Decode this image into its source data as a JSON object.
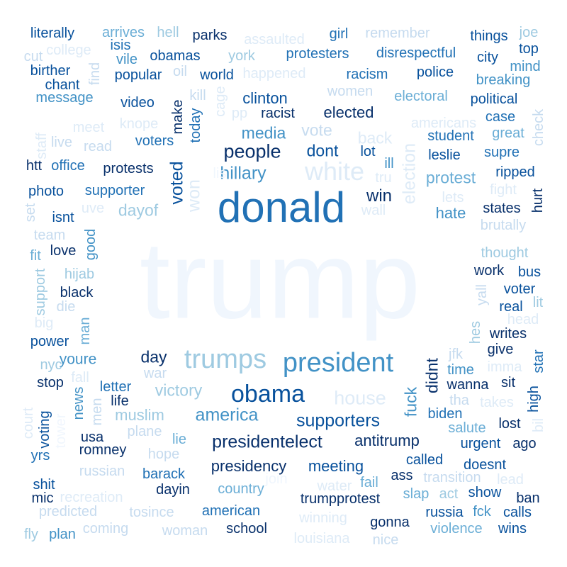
{
  "palette": {
    "c1": "#08306b",
    "c2": "#08519c",
    "c3": "#2171b5",
    "c4": "#4292c6",
    "c5": "#6baed6",
    "c6": "#9ecae1",
    "c7": "#c6dbef",
    "c8": "#deebf7",
    "c9": "#f0f6fd"
  },
  "words": [
    {
      "text": "trump",
      "color": "c9"
    },
    {
      "text": "donald",
      "color": "c3"
    },
    {
      "text": "president",
      "color": "c4"
    },
    {
      "text": "trumps",
      "color": "c6"
    },
    {
      "text": "obama",
      "color": "c2"
    },
    {
      "text": "white",
      "color": "c8"
    },
    {
      "text": "people",
      "color": "c1"
    },
    {
      "text": "house",
      "color": "c8"
    },
    {
      "text": "presidentelect",
      "color": "c1"
    },
    {
      "text": "supporters",
      "color": "c2"
    },
    {
      "text": "america",
      "color": "c4"
    },
    {
      "text": "presidency",
      "color": "c1"
    },
    {
      "text": "hillary",
      "color": "c4"
    },
    {
      "text": "election",
      "color": "c8"
    },
    {
      "text": "won",
      "color": "c8"
    },
    {
      "text": "voted",
      "color": "c2"
    },
    {
      "text": "win",
      "color": "c1"
    },
    {
      "text": "meeting",
      "color": "c2"
    },
    {
      "text": "antitrump",
      "color": "c1"
    },
    {
      "text": "victory",
      "color": "c6"
    },
    {
      "text": "fuck",
      "color": "c4"
    },
    {
      "text": "didnt",
      "color": "c1"
    },
    {
      "text": "dont",
      "color": "c2"
    },
    {
      "text": "day",
      "color": "c1"
    },
    {
      "text": "media",
      "color": "c4"
    },
    {
      "text": "protest",
      "color": "c5"
    },
    {
      "text": "vote",
      "color": "c7"
    },
    {
      "text": "back",
      "color": "c8"
    },
    {
      "text": "clinton",
      "color": "c2"
    },
    {
      "text": "elected",
      "color": "c1"
    },
    {
      "text": "dayof",
      "color": "c6"
    },
    {
      "text": "hate",
      "color": "c4"
    },
    {
      "text": "muslim",
      "color": "c6"
    },
    {
      "text": "country",
      "color": "c5"
    },
    {
      "text": "trumpprotest",
      "color": "c1"
    },
    {
      "text": "plane",
      "color": "c7"
    },
    {
      "text": "racist",
      "color": "c1"
    },
    {
      "text": "today",
      "color": "c3"
    },
    {
      "text": "make",
      "color": "c1"
    },
    {
      "text": "youre",
      "color": "c4"
    },
    {
      "text": "american",
      "color": "c3"
    },
    {
      "text": "barack",
      "color": "c3"
    },
    {
      "text": "school",
      "color": "c1"
    },
    {
      "text": "dayin",
      "color": "c1"
    },
    {
      "text": "called",
      "color": "c2"
    },
    {
      "text": "biden",
      "color": "c3"
    },
    {
      "text": "time",
      "color": "c4"
    },
    {
      "text": "wanna",
      "color": "c1"
    },
    {
      "text": "doesnt",
      "color": "c2"
    },
    {
      "text": "salute",
      "color": "c5"
    },
    {
      "text": "urgent",
      "color": "c2"
    },
    {
      "text": "lost",
      "color": "c1"
    },
    {
      "text": "water",
      "color": "c8"
    },
    {
      "text": "fail",
      "color": "c5"
    },
    {
      "text": "ass",
      "color": "c1"
    },
    {
      "text": "slap",
      "color": "c5"
    },
    {
      "text": "act",
      "color": "c6"
    },
    {
      "text": "show",
      "color": "c2"
    },
    {
      "text": "transition",
      "color": "c7"
    },
    {
      "text": "russia",
      "color": "c2"
    },
    {
      "text": "fck",
      "color": "c4"
    },
    {
      "text": "calls",
      "color": "c2"
    },
    {
      "text": "wins",
      "color": "c2"
    },
    {
      "text": "violence",
      "color": "c5"
    },
    {
      "text": "gonna",
      "color": "c1"
    },
    {
      "text": "nice",
      "color": "c7"
    },
    {
      "text": "winning",
      "color": "c8"
    },
    {
      "text": "louisiana",
      "color": "c8"
    },
    {
      "text": "woman",
      "color": "c7"
    },
    {
      "text": "coming",
      "color": "c7"
    },
    {
      "text": "tosince",
      "color": "c7"
    },
    {
      "text": "predicted",
      "color": "c7"
    },
    {
      "text": "recreation",
      "color": "c8"
    },
    {
      "text": "fly",
      "color": "c6"
    },
    {
      "text": "plan",
      "color": "c4"
    },
    {
      "text": "mic",
      "color": "c1"
    },
    {
      "text": "shit",
      "color": "c2"
    },
    {
      "text": "yrs",
      "color": "c3"
    },
    {
      "text": "romney",
      "color": "c1"
    },
    {
      "text": "usa",
      "color": "c1"
    },
    {
      "text": "hope",
      "color": "c7"
    },
    {
      "text": "lie",
      "color": "c5"
    },
    {
      "text": "russian",
      "color": "c7"
    },
    {
      "text": "voting",
      "color": "c2"
    },
    {
      "text": "court",
      "color": "c8"
    },
    {
      "text": "tower",
      "color": "c9"
    },
    {
      "text": "news",
      "color": "c4"
    },
    {
      "text": "men",
      "color": "c7"
    },
    {
      "text": "life",
      "color": "c1"
    },
    {
      "text": "letter",
      "color": "c3"
    },
    {
      "text": "stop",
      "color": "c1"
    },
    {
      "text": "nyc",
      "color": "c6"
    },
    {
      "text": "fall",
      "color": "c8"
    },
    {
      "text": "war",
      "color": "c7"
    },
    {
      "text": "power",
      "color": "c2"
    },
    {
      "text": "man",
      "color": "c5"
    },
    {
      "text": "big",
      "color": "c8"
    },
    {
      "text": "die",
      "color": "c7"
    },
    {
      "text": "black",
      "color": "c1"
    },
    {
      "text": "support",
      "color": "c6"
    },
    {
      "text": "hijab",
      "color": "c6"
    },
    {
      "text": "fit",
      "color": "c5"
    },
    {
      "text": "love",
      "color": "c1"
    },
    {
      "text": "good",
      "color": "c4"
    },
    {
      "text": "team",
      "color": "c7"
    },
    {
      "text": "isnt",
      "color": "c2"
    },
    {
      "text": "set",
      "color": "c7"
    },
    {
      "text": "uve",
      "color": "c8"
    },
    {
      "text": "photo",
      "color": "c2"
    },
    {
      "text": "supporter",
      "color": "c3"
    },
    {
      "text": "htt",
      "color": "c1"
    },
    {
      "text": "office",
      "color": "c3"
    },
    {
      "text": "protests",
      "color": "c1"
    },
    {
      "text": "staff",
      "color": "c8"
    },
    {
      "text": "live",
      "color": "c7"
    },
    {
      "text": "read",
      "color": "c7"
    },
    {
      "text": "voters",
      "color": "c3"
    },
    {
      "text": "meet",
      "color": "c8"
    },
    {
      "text": "knope",
      "color": "c8"
    },
    {
      "text": "video",
      "color": "c2"
    },
    {
      "text": "kill",
      "color": "c7"
    },
    {
      "text": "message",
      "color": "c4"
    },
    {
      "text": "chant",
      "color": "c2"
    },
    {
      "text": "birther",
      "color": "c2"
    },
    {
      "text": "find",
      "color": "c7"
    },
    {
      "text": "popular",
      "color": "c2"
    },
    {
      "text": "oil",
      "color": "c7"
    },
    {
      "text": "world",
      "color": "c2"
    },
    {
      "text": "cut",
      "color": "c7"
    },
    {
      "text": "college",
      "color": "c8"
    },
    {
      "text": "vile",
      "color": "c4"
    },
    {
      "text": "obamas",
      "color": "c2"
    },
    {
      "text": "isis",
      "color": "c3"
    },
    {
      "text": "literally",
      "color": "c2"
    },
    {
      "text": "arrives",
      "color": "c5"
    },
    {
      "text": "hell",
      "color": "c6"
    },
    {
      "text": "parks",
      "color": "c1"
    },
    {
      "text": "assaulted",
      "color": "c8"
    },
    {
      "text": "york",
      "color": "c6"
    },
    {
      "text": "happened",
      "color": "c8"
    },
    {
      "text": "girl",
      "color": "c3"
    },
    {
      "text": "remember",
      "color": "c7"
    },
    {
      "text": "protesters",
      "color": "c3"
    },
    {
      "text": "disrespectful",
      "color": "c3"
    },
    {
      "text": "racism",
      "color": "c3"
    },
    {
      "text": "police",
      "color": "c2"
    },
    {
      "text": "women",
      "color": "c7"
    },
    {
      "text": "electoral",
      "color": "c5"
    },
    {
      "text": "things",
      "color": "c2"
    },
    {
      "text": "joe",
      "color": "c6"
    },
    {
      "text": "top",
      "color": "c2"
    },
    {
      "text": "city",
      "color": "c2"
    },
    {
      "text": "mind",
      "color": "c4"
    },
    {
      "text": "breaking",
      "color": "c4"
    },
    {
      "text": "political",
      "color": "c2"
    },
    {
      "text": "case",
      "color": "c3"
    },
    {
      "text": "check",
      "color": "c7"
    },
    {
      "text": "americans",
      "color": "c8"
    },
    {
      "text": "student",
      "color": "c3"
    },
    {
      "text": "great",
      "color": "c5"
    },
    {
      "text": "leslie",
      "color": "c2"
    },
    {
      "text": "supre",
      "color": "c3"
    },
    {
      "text": "ripped",
      "color": "c2"
    },
    {
      "text": "fight",
      "color": "c8"
    },
    {
      "text": "hurt",
      "color": "c1"
    },
    {
      "text": "lets",
      "color": "c8"
    },
    {
      "text": "states",
      "color": "c1"
    },
    {
      "text": "brutally",
      "color": "c7"
    },
    {
      "text": "lot",
      "color": "c2"
    },
    {
      "text": "ill",
      "color": "c4"
    },
    {
      "text": "tru",
      "color": "c8"
    },
    {
      "text": "wall",
      "color": "c8"
    },
    {
      "text": "cage",
      "color": "c8"
    },
    {
      "text": "pp",
      "color": "c8"
    },
    {
      "text": "lis",
      "color": "c9"
    },
    {
      "text": "thought",
      "color": "c6"
    },
    {
      "text": "work",
      "color": "c1"
    },
    {
      "text": "bus",
      "color": "c2"
    },
    {
      "text": "voter",
      "color": "c2"
    },
    {
      "text": "real",
      "color": "c2"
    },
    {
      "text": "yall",
      "color": "c7"
    },
    {
      "text": "lit",
      "color": "c6"
    },
    {
      "text": "head",
      "color": "c8"
    },
    {
      "text": "hes",
      "color": "c6"
    },
    {
      "text": "writes",
      "color": "c1"
    },
    {
      "text": "give",
      "color": "c1"
    },
    {
      "text": "star",
      "color": "c3"
    },
    {
      "text": "imma",
      "color": "c8"
    },
    {
      "text": "jfk",
      "color": "c7"
    },
    {
      "text": "sit",
      "color": "c1"
    },
    {
      "text": "high",
      "color": "c2"
    },
    {
      "text": "tha",
      "color": "c7"
    },
    {
      "text": "takes",
      "color": "c8"
    },
    {
      "text": "ago",
      "color": "c1"
    },
    {
      "text": "bil",
      "color": "c8"
    },
    {
      "text": "lead",
      "color": "c8"
    },
    {
      "text": "ban",
      "color": "c1"
    },
    {
      "text": "join",
      "color": "c9"
    }
  ]
}
